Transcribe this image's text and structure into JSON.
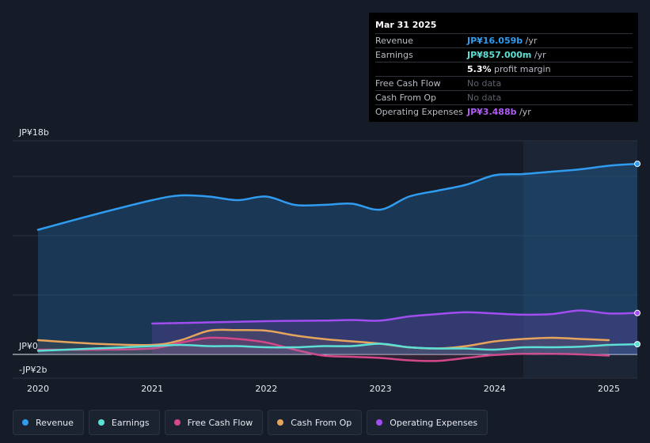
{
  "tooltip": {
    "date": "Mar 31 2025",
    "rows": [
      {
        "label": "Revenue",
        "value": "JP¥16.059b",
        "unit": "/yr",
        "color": "#2f9cf0"
      },
      {
        "label": "Earnings",
        "value": "JP¥857.000m",
        "unit": "/yr",
        "color": "#5ce0d6"
      },
      {
        "label": "",
        "value": "5.3%",
        "unit": "profit margin",
        "color": "#ffffff"
      },
      {
        "label": "Free Cash Flow",
        "value": "No data",
        "unit": "",
        "color": "#5c626c"
      },
      {
        "label": "Cash From Op",
        "value": "No data",
        "unit": "",
        "color": "#5c626c"
      },
      {
        "label": "Operating Expenses",
        "value": "JP¥3.488b",
        "unit": "/yr",
        "color": "#b05cf6"
      }
    ]
  },
  "legend": [
    {
      "label": "Revenue",
      "color": "#2f9cf0"
    },
    {
      "label": "Earnings",
      "color": "#5ce0d6"
    },
    {
      "label": "Free Cash Flow",
      "color": "#d3478b"
    },
    {
      "label": "Cash From Op",
      "color": "#e6a45c"
    },
    {
      "label": "Operating Expenses",
      "color": "#a14df0"
    }
  ],
  "chart_data": {
    "type": "line",
    "title": "",
    "xlabel": "",
    "ylabel": "",
    "y_axis_labels": [
      {
        "label": "JP¥18b",
        "value": 18
      },
      {
        "label": "JP¥0",
        "value": 0
      },
      {
        "label": "-JP¥2b",
        "value": -2
      }
    ],
    "ylim": [
      -2,
      18
    ],
    "xlim": [
      2020.0,
      2025.25
    ],
    "x_ticks": [
      {
        "label": "2020",
        "value": 2020
      },
      {
        "label": "2021",
        "value": 2021
      },
      {
        "label": "2022",
        "value": 2022
      },
      {
        "label": "2023",
        "value": 2023
      },
      {
        "label": "2024",
        "value": 2024
      },
      {
        "label": "2025",
        "value": 2025
      }
    ],
    "forecast_start": 2024.25,
    "units": "JP¥ billions",
    "series": [
      {
        "name": "Revenue",
        "color": "#2f9cf0",
        "x": [
          2020.0,
          2020.5,
          2021.0,
          2021.25,
          2021.5,
          2021.75,
          2022.0,
          2022.25,
          2022.5,
          2022.75,
          2023.0,
          2023.25,
          2023.5,
          2023.75,
          2024.0,
          2024.25,
          2024.5,
          2024.75,
          2025.0,
          2025.25
        ],
        "values": [
          10.5,
          11.8,
          13.0,
          13.4,
          13.3,
          13.0,
          13.3,
          12.6,
          12.6,
          12.7,
          12.2,
          13.3,
          13.8,
          14.3,
          15.1,
          15.2,
          15.4,
          15.6,
          15.9,
          16.06
        ]
      },
      {
        "name": "Earnings",
        "color": "#5ce0d6",
        "x": [
          2020.0,
          2020.5,
          2021.0,
          2021.25,
          2021.5,
          2021.75,
          2022.0,
          2022.25,
          2022.5,
          2022.75,
          2023.0,
          2023.25,
          2023.5,
          2023.75,
          2024.0,
          2024.25,
          2024.5,
          2024.75,
          2025.0,
          2025.25
        ],
        "values": [
          0.3,
          0.5,
          0.7,
          0.8,
          0.7,
          0.7,
          0.6,
          0.6,
          0.7,
          0.7,
          0.9,
          0.6,
          0.5,
          0.5,
          0.4,
          0.6,
          0.6,
          0.65,
          0.8,
          0.86
        ]
      },
      {
        "name": "Free Cash Flow",
        "color": "#d3478b",
        "x": [
          2020.0,
          2020.5,
          2021.0,
          2021.25,
          2021.5,
          2021.75,
          2022.0,
          2022.25,
          2022.5,
          2022.75,
          2023.0,
          2023.25,
          2023.5,
          2023.75,
          2024.0,
          2024.25,
          2024.5,
          2024.75,
          2025.0
        ],
        "values": [
          0.4,
          0.4,
          0.5,
          1.0,
          1.4,
          1.3,
          1.0,
          0.4,
          -0.1,
          -0.2,
          -0.3,
          -0.5,
          -0.55,
          -0.3,
          -0.05,
          0.05,
          0.05,
          0.0,
          -0.1
        ]
      },
      {
        "name": "Cash From Op",
        "color": "#e6a45c",
        "x": [
          2020.0,
          2020.5,
          2021.0,
          2021.25,
          2021.5,
          2021.75,
          2022.0,
          2022.25,
          2022.5,
          2022.75,
          2023.0,
          2023.25,
          2023.5,
          2023.75,
          2024.0,
          2024.25,
          2024.5,
          2024.75,
          2025.0
        ],
        "values": [
          1.2,
          0.9,
          0.8,
          1.2,
          2.0,
          2.05,
          2.0,
          1.6,
          1.3,
          1.1,
          0.9,
          0.6,
          0.5,
          0.7,
          1.1,
          1.3,
          1.4,
          1.3,
          1.2
        ]
      },
      {
        "name": "Operating Expenses",
        "color": "#a14df0",
        "x": [
          2021.0,
          2021.5,
          2022.0,
          2022.5,
          2022.75,
          2023.0,
          2023.25,
          2023.5,
          2023.75,
          2024.0,
          2024.25,
          2024.5,
          2024.75,
          2025.0,
          2025.25
        ],
        "values": [
          2.6,
          2.7,
          2.8,
          2.85,
          2.9,
          2.85,
          3.2,
          3.4,
          3.55,
          3.45,
          3.35,
          3.4,
          3.7,
          3.45,
          3.49
        ]
      }
    ]
  }
}
